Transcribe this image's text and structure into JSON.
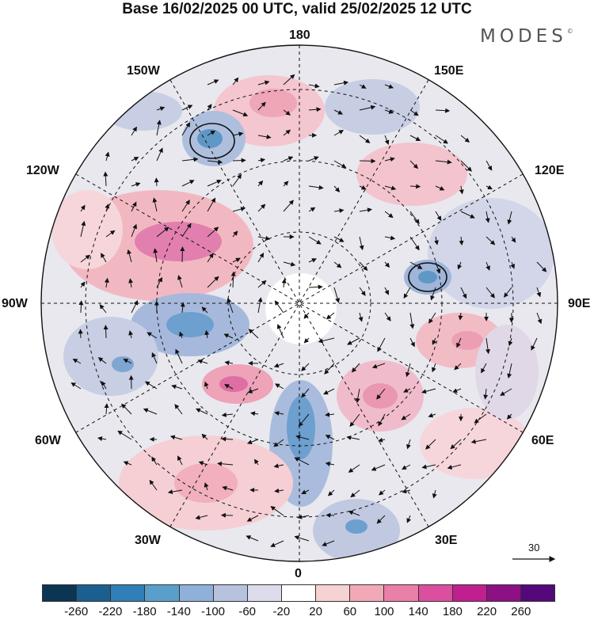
{
  "title": "Base 16/02/2025 00 UTC, valid 25/02/2025 12 UTC",
  "brand": "MODES",
  "brand_mark": "©",
  "longitude_labels": {
    "top": "180",
    "bottom": "0",
    "left": "90W",
    "right": "90E",
    "upper_left_1": "150W",
    "upper_left_2": "120W",
    "upper_right_1": "150E",
    "upper_right_2": "120E",
    "lower_left_1": "60W",
    "lower_left_2": "30W",
    "lower_right_1": "60E",
    "lower_right_2": "30E"
  },
  "reference_vector_label": "30",
  "colorbar": {
    "colors": [
      "#0b3552",
      "#1b5f8e",
      "#2f7fb8",
      "#5a9fcc",
      "#8fb0d8",
      "#b7c2df",
      "#dcdcec",
      "#ffffff",
      "#f6d2d2",
      "#f2a9b7",
      "#ea7fa8",
      "#dc4fa0",
      "#bf1f8f",
      "#8e1085",
      "#55087a"
    ],
    "tick_labels": [
      "-260",
      "-220",
      "-180",
      "-140",
      "-100",
      "-60",
      "-20",
      "20",
      "60",
      "100",
      "140",
      "180",
      "220",
      "260"
    ]
  }
}
